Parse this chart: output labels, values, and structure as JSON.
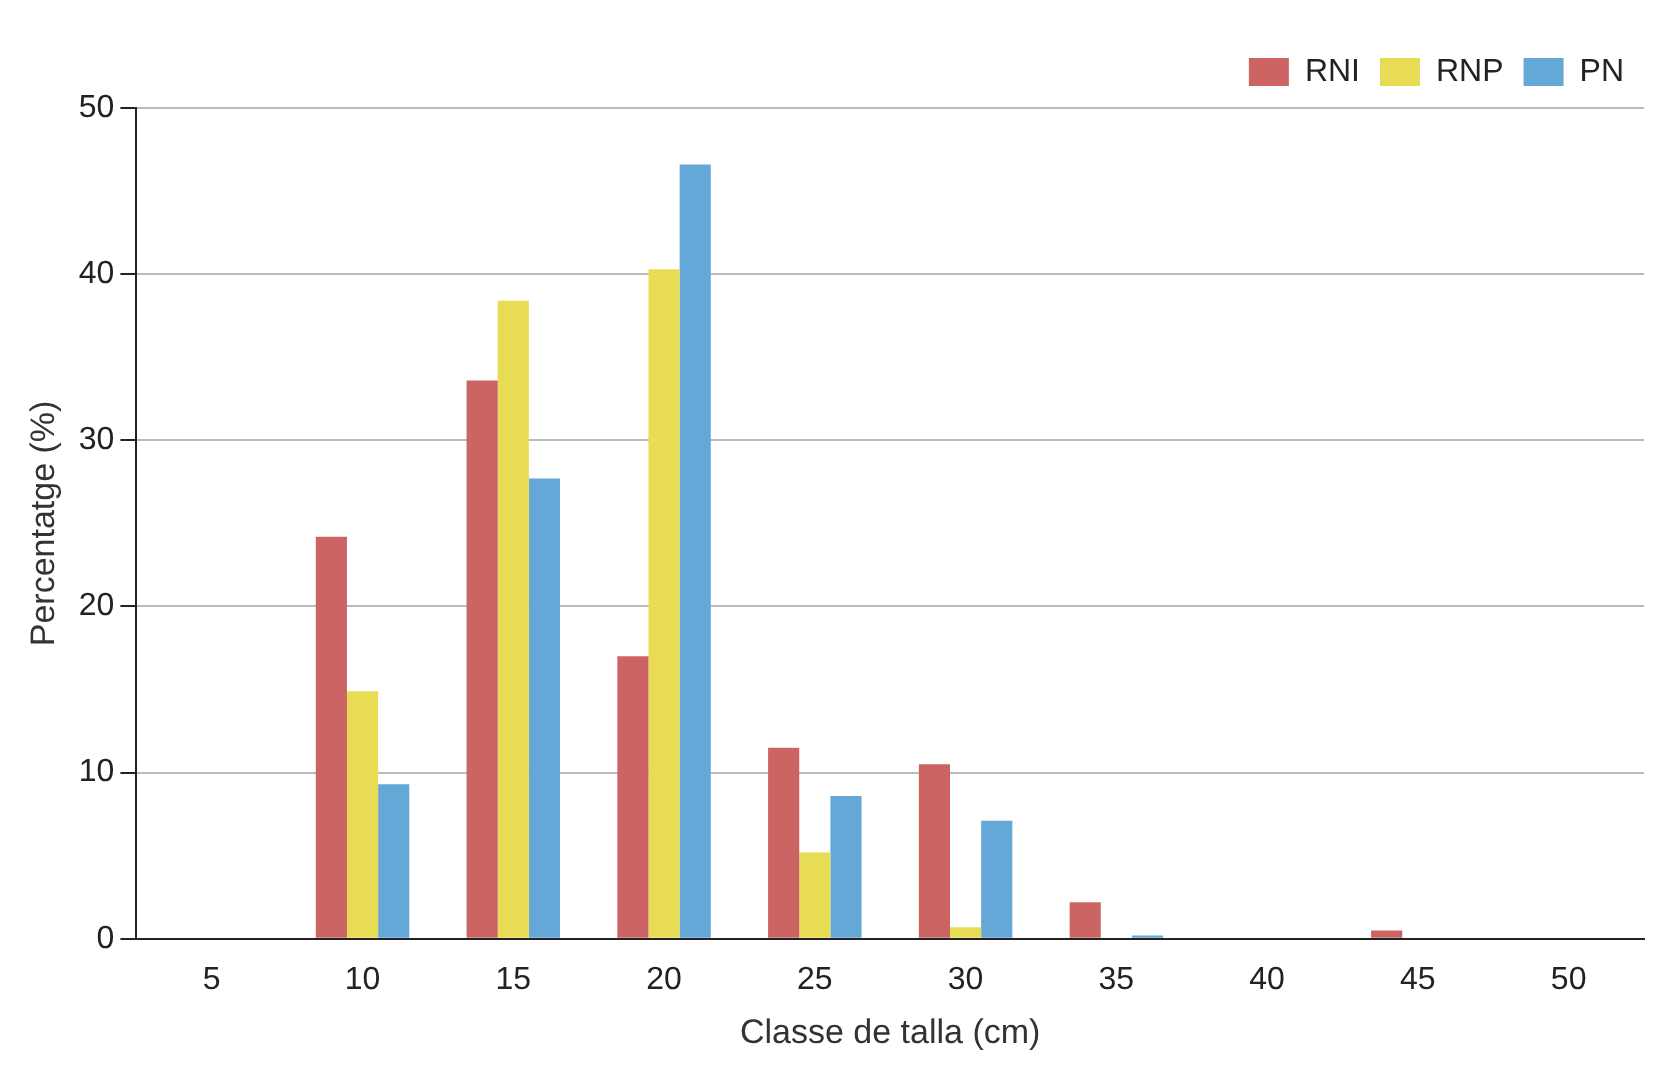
{
  "chart_data": {
    "type": "bar",
    "xlabel": "Classe de talla (cm)",
    "ylabel": "Percentatge (%)",
    "categories": [
      "5",
      "10",
      "15",
      "20",
      "25",
      "30",
      "35",
      "40",
      "45",
      "50"
    ],
    "series": [
      {
        "name": "RNI",
        "color": "#cd6464",
        "values": [
          0,
          24.2,
          33.6,
          17.0,
          11.5,
          10.5,
          2.2,
          0,
          0.5,
          0
        ]
      },
      {
        "name": "RNP",
        "color": "#e8dc55",
        "values": [
          0,
          14.9,
          38.4,
          40.3,
          5.2,
          0.7,
          0,
          0,
          0,
          0
        ]
      },
      {
        "name": "PN",
        "color": "#64a8d8",
        "values": [
          0,
          9.3,
          27.7,
          46.6,
          8.6,
          7.1,
          0.2,
          0,
          0,
          0
        ]
      }
    ],
    "ylim": [
      0,
      50
    ],
    "yticks": [
      0,
      10,
      20,
      30,
      40,
      50
    ],
    "grid": "y",
    "legend": "top right"
  }
}
